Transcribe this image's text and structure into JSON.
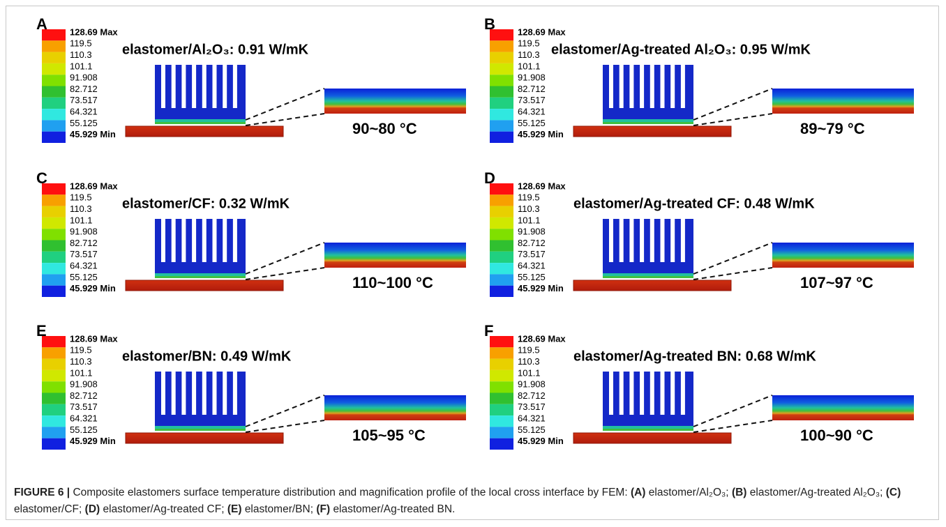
{
  "legend": [
    "128.69 Max",
    "119.5",
    "110.3",
    "101.1",
    "91.908",
    "82.712",
    "73.517",
    "64.321",
    "55.125",
    "45.929 Min"
  ],
  "panels": [
    {
      "label": "A",
      "title": "elastomer/Al₂O₃: 0.91 W/mK",
      "range": "90~80 °C"
    },
    {
      "label": "B",
      "title": "elastomer/Ag-treated Al₂O₃: 0.95 W/mK",
      "range": "89~79 °C"
    },
    {
      "label": "C",
      "title": "elastomer/CF: 0.32 W/mK",
      "range": "110~100 °C"
    },
    {
      "label": "D",
      "title": "elastomer/Ag-treated CF: 0.48 W/mK",
      "range": "107~97 °C"
    },
    {
      "label": "E",
      "title": "elastomer/BN: 0.49 W/mK",
      "range": "105~95 °C"
    },
    {
      "label": "F",
      "title": "elastomer/Ag-treated BN: 0.68 W/mK",
      "range": "100~90 °C"
    }
  ],
  "caption": {
    "label": "FIGURE 6 |",
    "text": "Composite elastomers surface temperature distribution and magnification profile of the local cross interface by FEM:",
    "items": [
      {
        "key": "(A)",
        "text": "elastomer/Al₂O₃;"
      },
      {
        "key": "(B)",
        "text": "elastomer/Ag-treated Al₂O₃;"
      },
      {
        "key": "(C)",
        "text": "elastomer/CF;"
      },
      {
        "key": "(D)",
        "text": "elastomer/Ag-treated CF;"
      },
      {
        "key": "(E)",
        "text": "elastomer/BN;"
      },
      {
        "key": "(F)",
        "text": "elastomer/Ag-treated BN."
      }
    ]
  }
}
